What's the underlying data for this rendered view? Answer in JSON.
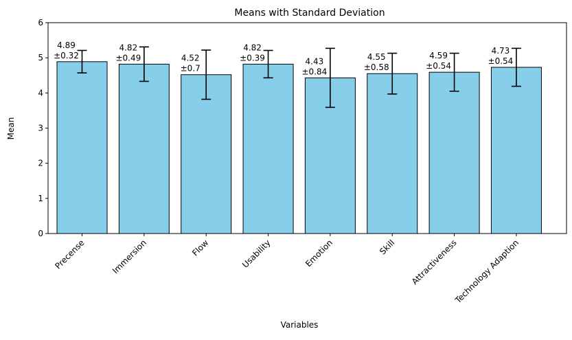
{
  "chart_data": {
    "type": "bar",
    "title": "Means with Standard Deviation",
    "xlabel": "Variables",
    "ylabel": "Mean",
    "ylim": [
      0,
      6
    ],
    "yticks": [
      "0",
      "1",
      "2",
      "3",
      "4",
      "5",
      "6"
    ],
    "categories": [
      "Precense",
      "Immersion",
      "Flow",
      "Usability",
      "Emotion",
      "Skill",
      "Attractiveness",
      "Technology Adaption"
    ],
    "values": [
      4.89,
      4.82,
      4.52,
      4.82,
      4.43,
      4.55,
      4.59,
      4.73
    ],
    "errors": [
      0.32,
      0.49,
      0.7,
      0.39,
      0.84,
      0.58,
      0.54,
      0.54
    ],
    "mean_labels": [
      "4.89",
      "4.82",
      "4.52",
      "4.82",
      "4.43",
      "4.55",
      "4.59",
      "4.73"
    ],
    "sd_labels": [
      "±0.32",
      "±0.49",
      "±0.7",
      "±0.39",
      "±0.84",
      "±0.58",
      "±0.54",
      "±0.54"
    ],
    "grid": false,
    "legend": "none",
    "bar_color": "#87ceeb",
    "edge_color": "#000000",
    "error_color": "#000000"
  }
}
